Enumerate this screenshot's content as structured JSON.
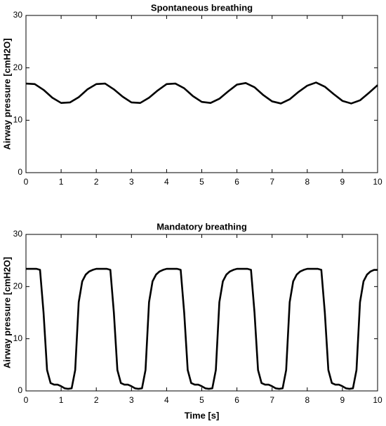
{
  "chart_data": [
    {
      "type": "line",
      "title": "Spontaneous breathing",
      "ylabel": "Airway pressure [cmH2O]",
      "x": [
        0,
        0.25,
        0.5,
        0.75,
        1,
        1.25,
        1.5,
        1.75,
        2,
        2.25,
        2.5,
        2.75,
        3,
        3.25,
        3.5,
        3.75,
        4,
        4.25,
        4.5,
        4.75,
        5,
        5.25,
        5.5,
        5.75,
        6,
        6.25,
        6.5,
        6.75,
        7,
        7.25,
        7.5,
        7.75,
        8,
        8.25,
        8.5,
        8.75,
        9,
        9.25,
        9.5,
        9.75,
        10
      ],
      "series": [
        {
          "color": "#000000",
          "values": [
            17.0,
            16.9,
            15.8,
            14.3,
            13.3,
            13.4,
            14.4,
            15.9,
            16.9,
            17.0,
            15.9,
            14.5,
            13.4,
            13.3,
            14.3,
            15.7,
            16.9,
            17.0,
            16.1,
            14.6,
            13.5,
            13.3,
            14.1,
            15.5,
            16.8,
            17.1,
            16.3,
            14.8,
            13.6,
            13.2,
            14.0,
            15.4,
            16.6,
            17.2,
            16.4,
            15.0,
            13.7,
            13.2,
            13.8,
            15.2,
            16.7
          ]
        }
      ],
      "xlim": [
        0,
        10
      ],
      "xticks": [
        0,
        1,
        2,
        3,
        4,
        5,
        6,
        7,
        8,
        9,
        10
      ],
      "ylim": [
        0,
        30
      ],
      "yticks": [
        0,
        10,
        20,
        30
      ]
    },
    {
      "type": "line",
      "title": "Mandatory breathing",
      "ylabel": "Airway pressure [cmH2O]",
      "xlabel": "Time [s]",
      "x": [
        0,
        0.1,
        0.2,
        0.3,
        0.4,
        0.5,
        0.6,
        0.7,
        0.8,
        0.9,
        1,
        1.1,
        1.2,
        1.3,
        1.4,
        1.5,
        1.6,
        1.7,
        1.8,
        1.9,
        2,
        2.1,
        2.2,
        2.3,
        2.4,
        2.5,
        2.6,
        2.7,
        2.8,
        2.9,
        3,
        3.1,
        3.2,
        3.3,
        3.4,
        3.5,
        3.6,
        3.7,
        3.8,
        3.9,
        4,
        4.1,
        4.2,
        4.3,
        4.4,
        4.5,
        4.6,
        4.7,
        4.8,
        4.9,
        5,
        5.1,
        5.2,
        5.3,
        5.4,
        5.5,
        5.6,
        5.7,
        5.8,
        5.9,
        6,
        6.1,
        6.2,
        6.3,
        6.4,
        6.5,
        6.6,
        6.7,
        6.8,
        6.9,
        7,
        7.1,
        7.2,
        7.3,
        7.4,
        7.5,
        7.6,
        7.7,
        7.8,
        7.9,
        8,
        8.1,
        8.2,
        8.3,
        8.4,
        8.5,
        8.6,
        8.7,
        8.8,
        8.9,
        9,
        9.1,
        9.2,
        9.3,
        9.4,
        9.5,
        9.6,
        9.7,
        9.8,
        9.9,
        10
      ],
      "series": [
        {
          "color": "#000000",
          "values": [
            23.4,
            23.4,
            23.4,
            23.4,
            23.2,
            15,
            4,
            1.5,
            1.2,
            1.2,
            0.9,
            0.5,
            0.4,
            0.5,
            4,
            17,
            21,
            22.3,
            22.9,
            23.2,
            23.4,
            23.4,
            23.4,
            23.4,
            23.2,
            15,
            4,
            1.5,
            1.2,
            1.2,
            0.9,
            0.5,
            0.4,
            0.5,
            4,
            17,
            21,
            22.3,
            22.9,
            23.2,
            23.4,
            23.4,
            23.4,
            23.4,
            23.2,
            15,
            4,
            1.5,
            1.2,
            1.2,
            0.9,
            0.5,
            0.4,
            0.5,
            4,
            17,
            21,
            22.3,
            22.9,
            23.2,
            23.4,
            23.4,
            23.4,
            23.4,
            23.2,
            15,
            4,
            1.5,
            1.2,
            1.2,
            0.9,
            0.5,
            0.4,
            0.5,
            4,
            17,
            21,
            22.3,
            22.9,
            23.2,
            23.4,
            23.4,
            23.4,
            23.4,
            23.2,
            15,
            4,
            1.5,
            1.2,
            1.2,
            0.9,
            0.5,
            0.4,
            0.5,
            4,
            17,
            21,
            22.3,
            22.9,
            23.2,
            23.2
          ]
        }
      ],
      "xlim": [
        0,
        10
      ],
      "xticks": [
        0,
        1,
        2,
        3,
        4,
        5,
        6,
        7,
        8,
        9,
        10
      ],
      "ylim": [
        0,
        30
      ],
      "yticks": [
        0,
        10,
        20,
        30
      ]
    }
  ]
}
